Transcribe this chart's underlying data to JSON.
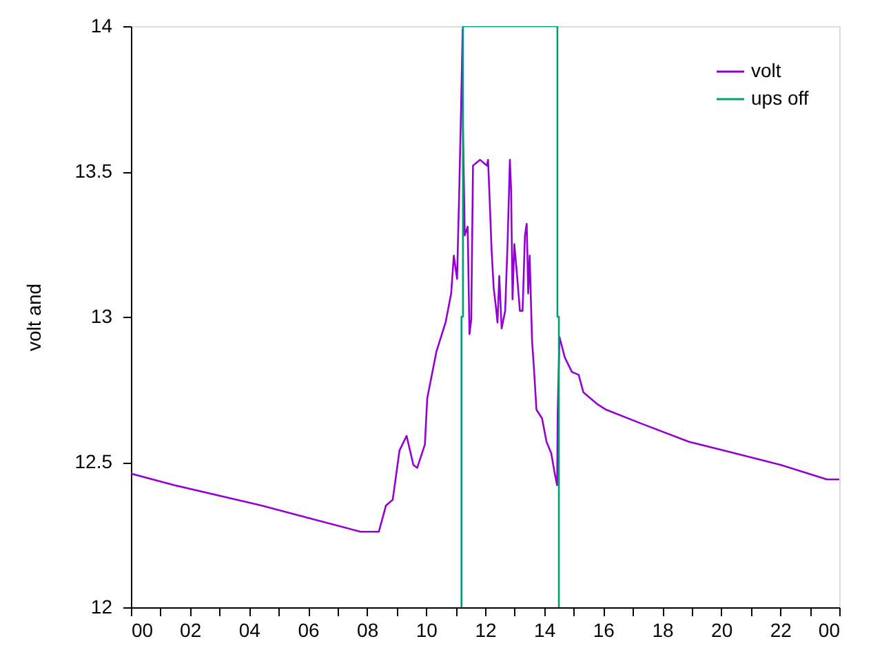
{
  "chart_data": {
    "type": "line",
    "ylabel": "volt and",
    "xlim": [
      0,
      24
    ],
    "ylim": [
      12,
      14
    ],
    "xticks": [
      {
        "value": 0,
        "label": "00"
      },
      {
        "value": 1,
        "label": null
      },
      {
        "value": 2,
        "label": "02"
      },
      {
        "value": 3,
        "label": null
      },
      {
        "value": 4,
        "label": "04"
      },
      {
        "value": 5,
        "label": null
      },
      {
        "value": 6,
        "label": "06"
      },
      {
        "value": 7,
        "label": null
      },
      {
        "value": 8,
        "label": "08"
      },
      {
        "value": 9,
        "label": null
      },
      {
        "value": 10,
        "label": "10"
      },
      {
        "value": 11,
        "label": null
      },
      {
        "value": 12,
        "label": "12"
      },
      {
        "value": 13,
        "label": null
      },
      {
        "value": 14,
        "label": "14"
      },
      {
        "value": 15,
        "label": null
      },
      {
        "value": 16,
        "label": "16"
      },
      {
        "value": 17,
        "label": null
      },
      {
        "value": 18,
        "label": "18"
      },
      {
        "value": 19,
        "label": null
      },
      {
        "value": 20,
        "label": "20"
      },
      {
        "value": 21,
        "label": null
      },
      {
        "value": 22,
        "label": "22"
      },
      {
        "value": 23,
        "label": null
      },
      {
        "value": 24,
        "label": "00"
      }
    ],
    "yticks": [
      12,
      12.5,
      13,
      13.5,
      14
    ],
    "grid": false,
    "legend": "top right",
    "marker": "none",
    "line_style": "solid",
    "series": [
      {
        "name": "volt",
        "color": "#9400d3",
        "x": [
          0,
          1.48,
          4.43,
          6.3,
          7.78,
          8.4,
          8.64,
          8.87,
          9.1,
          9.34,
          9.57,
          9.7,
          9.96,
          10.04,
          10.35,
          10.66,
          10.85,
          10.94,
          11.05,
          11.13,
          11.19,
          11.24,
          11.25,
          11.31,
          11.41,
          11.47,
          11.53,
          11.59,
          11.83,
          12.06,
          12.1,
          12.14,
          12.22,
          12.29,
          12.37,
          12.42,
          12.48,
          12.56,
          12.68,
          12.76,
          12.84,
          12.88,
          12.93,
          12.99,
          13.06,
          13.18,
          13.27,
          13.35,
          13.41,
          13.46,
          13.51,
          13.59,
          13.65,
          13.74,
          13.93,
          14.08,
          14.24,
          14.36,
          14.44,
          14.46,
          14.52,
          14.7,
          14.94,
          15.17,
          15.33,
          15.79,
          16.1,
          17.35,
          18.9,
          20.46,
          22.02,
          23.58,
          24
        ],
        "values": [
          12.46,
          12.42,
          12.35,
          12.3,
          12.26,
          12.26,
          12.35,
          12.37,
          12.54,
          12.59,
          12.49,
          12.48,
          12.56,
          12.72,
          12.88,
          12.98,
          13.08,
          13.21,
          13.13,
          13.46,
          13.74,
          13.99,
          13.65,
          13.28,
          13.31,
          12.94,
          12.99,
          13.52,
          13.54,
          13.52,
          13.54,
          13.44,
          13.23,
          13.1,
          13.03,
          12.98,
          13.14,
          12.96,
          13.02,
          13.25,
          13.54,
          13.44,
          13.06,
          13.25,
          13.17,
          13.02,
          13.02,
          13.28,
          13.32,
          13.08,
          13.21,
          12.92,
          12.83,
          12.68,
          12.65,
          12.57,
          12.53,
          12.46,
          12.42,
          12.67,
          12.93,
          12.86,
          12.81,
          12.8,
          12.74,
          12.7,
          12.68,
          12.63,
          12.57,
          12.53,
          12.49,
          12.44,
          12.44
        ]
      },
      {
        "name": "ups off",
        "color": "#009e73",
        "x": [
          11.2,
          11.2,
          11.25,
          11.25,
          14.45,
          14.45,
          14.5,
          14.5
        ],
        "values": [
          12,
          13,
          13,
          14,
          14,
          13,
          13,
          12
        ]
      }
    ]
  }
}
